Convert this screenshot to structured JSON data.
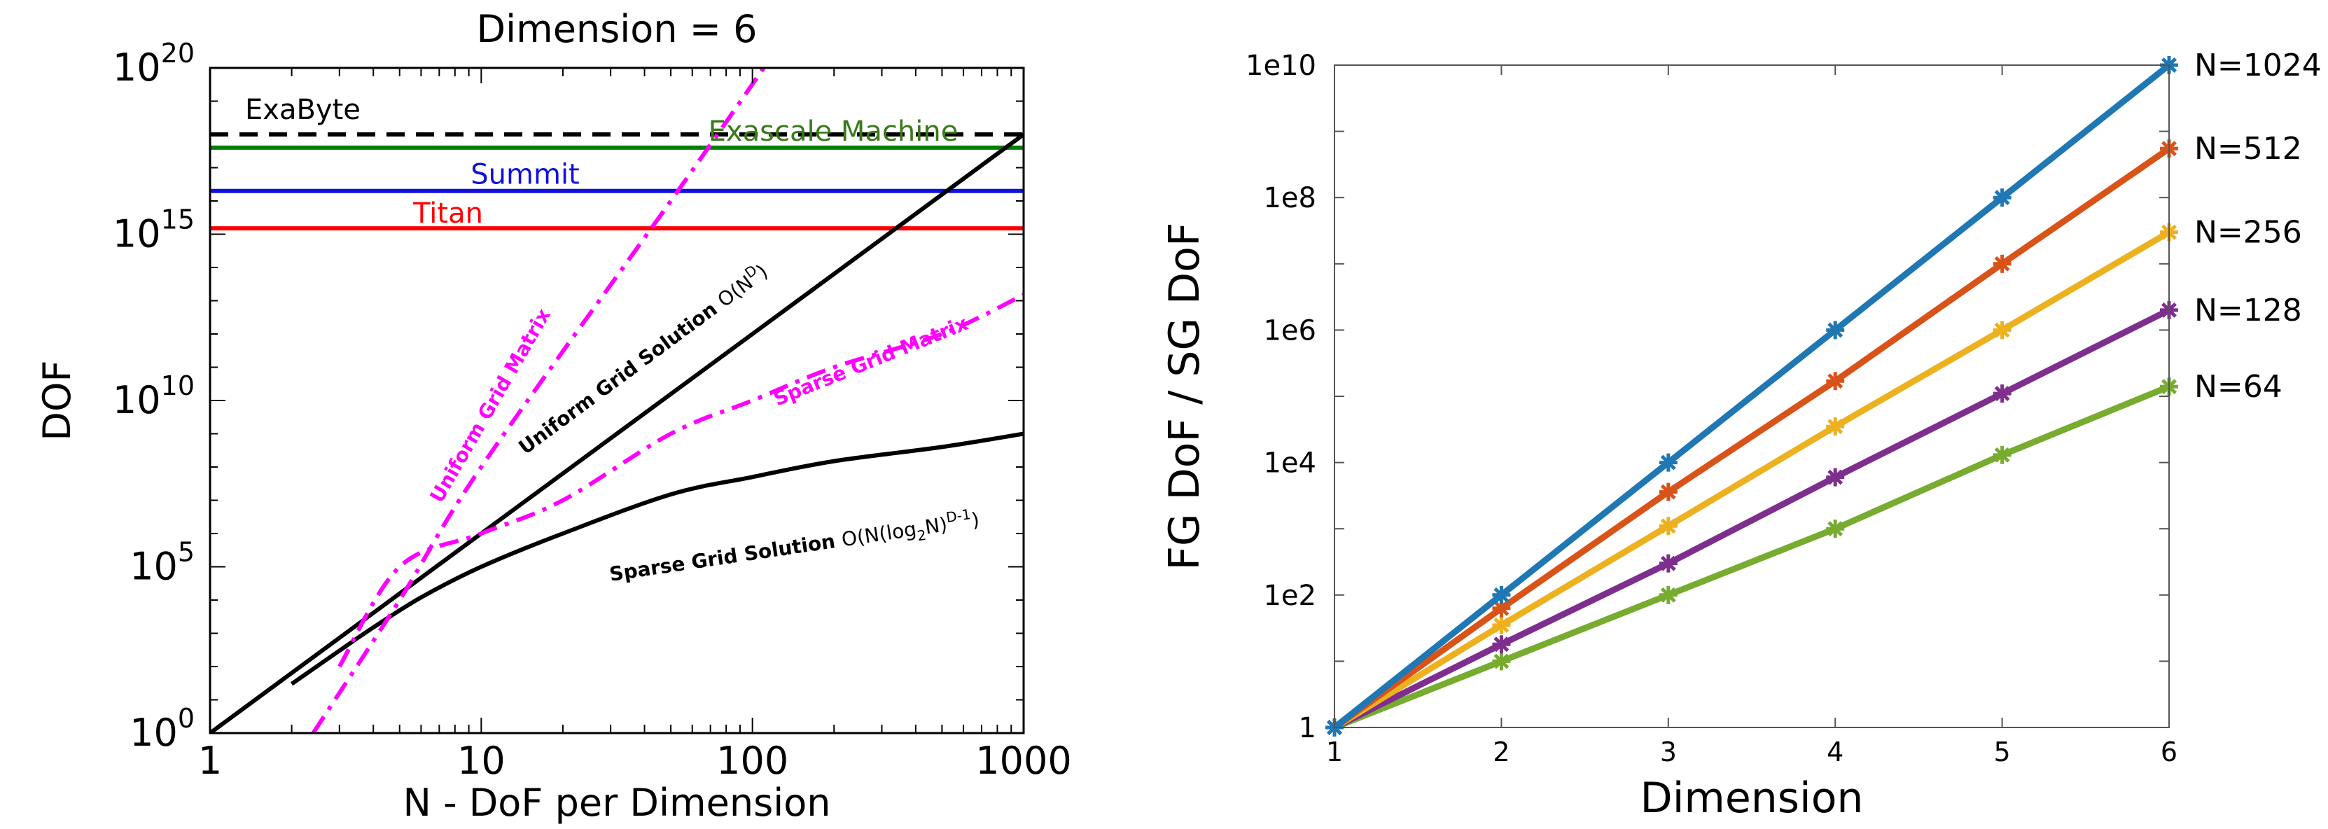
{
  "chart_data": [
    {
      "type": "line",
      "title": "Dimension = 6",
      "xlabel": "N - DoF per Dimension",
      "ylabel": "DOF",
      "xscale": "log",
      "yscale": "log",
      "xlim": [
        1,
        1000
      ],
      "ylim": [
        1,
        1e+20
      ],
      "xticklabels": [
        {
          "value": 1,
          "label": "1"
        },
        {
          "value": 10,
          "label": "10"
        },
        {
          "value": 100,
          "label": "100"
        },
        {
          "value": 1000,
          "label": "1000"
        }
      ],
      "yticklabels": [
        {
          "value": 1,
          "base": "10",
          "exp": "0"
        },
        {
          "value": 100000.0,
          "base": "10",
          "exp": "5"
        },
        {
          "value": 10000000000.0,
          "base": "10",
          "exp": "10"
        },
        {
          "value": 1000000000000000.0,
          "base": "10",
          "exp": "15"
        },
        {
          "value": 1e+20,
          "base": "10",
          "exp": "20"
        }
      ],
      "hlines": [
        {
          "label": "ExaByte",
          "y": 1e+18,
          "color": "#000000",
          "style": "dashed"
        },
        {
          "label": "Exascale Machine",
          "y": 4e+17,
          "color": "#008000",
          "label_color": "#3a7a1a",
          "style": "solid"
        },
        {
          "label": "Summit",
          "y": 2e+16,
          "color": "#1010e0",
          "style": "solid"
        },
        {
          "label": "Titan",
          "y": 1500000000000000.0,
          "color": "#ff0000",
          "style": "solid"
        }
      ],
      "series": [
        {
          "label": "Uniform Grid Solution",
          "formula": "O(N",
          "formula_sup": "D",
          "formula_tail": ")",
          "color": "#000000",
          "style": "solid",
          "x": [
            1,
            10,
            100,
            1000
          ],
          "y": [
            1,
            1000000.0,
            1000000000000.0,
            1e+18
          ]
        },
        {
          "label": "Sparse Grid Solution",
          "formula": "O(N(log",
          "formula_sub": "2",
          "formula_mid": "N)",
          "formula_sup": "D-1",
          "formula_tail": ")",
          "color": "#000000",
          "style": "solid",
          "x": [
            2,
            3,
            4,
            6,
            10,
            20,
            50,
            100,
            200,
            500,
            1000
          ],
          "y": [
            30,
            300,
            1500,
            12000.0,
            100000.0,
            1000000.0,
            15000000.0,
            50000000.0,
            150000000.0,
            400000000.0,
            1000000000.0
          ]
        },
        {
          "label": "Uniform Grid Matrix",
          "color": "#ff00ff",
          "style": "dashdot",
          "x": [
            2.4,
            5,
            10,
            50,
            110
          ],
          "y": [
            1,
            10000.0,
            100000000.0,
            1e+16,
            1e+20
          ]
        },
        {
          "label": "Sparse Grid Matrix",
          "color": "#ff00ff",
          "style": "dashdot",
          "x": [
            3,
            5,
            10,
            20,
            50,
            100,
            200,
            500,
            1000
          ],
          "y": [
            100,
            100000.0,
            1000000.0,
            10000000.0,
            1000000000.0,
            10000000000.0,
            100000000000.0,
            1000000000000.0,
            15000000000000.0
          ]
        }
      ]
    },
    {
      "type": "line",
      "xlabel": "Dimension",
      "ylabel": "FG DoF / SG DoF",
      "yscale": "log",
      "xlim": [
        1,
        6
      ],
      "ylim": [
        1,
        10000000000.0
      ],
      "xticks": [
        1,
        2,
        3,
        4,
        5,
        6
      ],
      "yticklabels": [
        {
          "value": 1,
          "label": "1"
        },
        {
          "value": 100,
          "label": "1e2"
        },
        {
          "value": 10000,
          "label": "1e4"
        },
        {
          "value": 1000000,
          "label": "1e6"
        },
        {
          "value": 100000000,
          "label": "1e8"
        },
        {
          "value": 10000000000,
          "label": "1e10"
        }
      ],
      "x": [
        1,
        2,
        3,
        4,
        5,
        6
      ],
      "series": [
        {
          "name": "N=1024",
          "color": "#1f77b4",
          "values": [
            1,
            100,
            10000.0,
            1000000.0,
            100000000.0,
            10000000000.0
          ]
        },
        {
          "name": "N=512",
          "color": "#d95319",
          "values": [
            1,
            63,
            3600,
            170000.0,
            10000000.0,
            550000000.0
          ]
        },
        {
          "name": "N=256",
          "color": "#edb120",
          "values": [
            1,
            35,
            1100,
            35000.0,
            1000000.0,
            30000000.0
          ]
        },
        {
          "name": "N=128",
          "color": "#7e2f8e",
          "values": [
            1,
            18,
            300,
            6000,
            110000.0,
            2000000.0
          ]
        },
        {
          "name": "N=64",
          "color": "#77ac30",
          "values": [
            1,
            10,
            100,
            1000,
            13000.0,
            140000.0
          ]
        }
      ]
    }
  ]
}
